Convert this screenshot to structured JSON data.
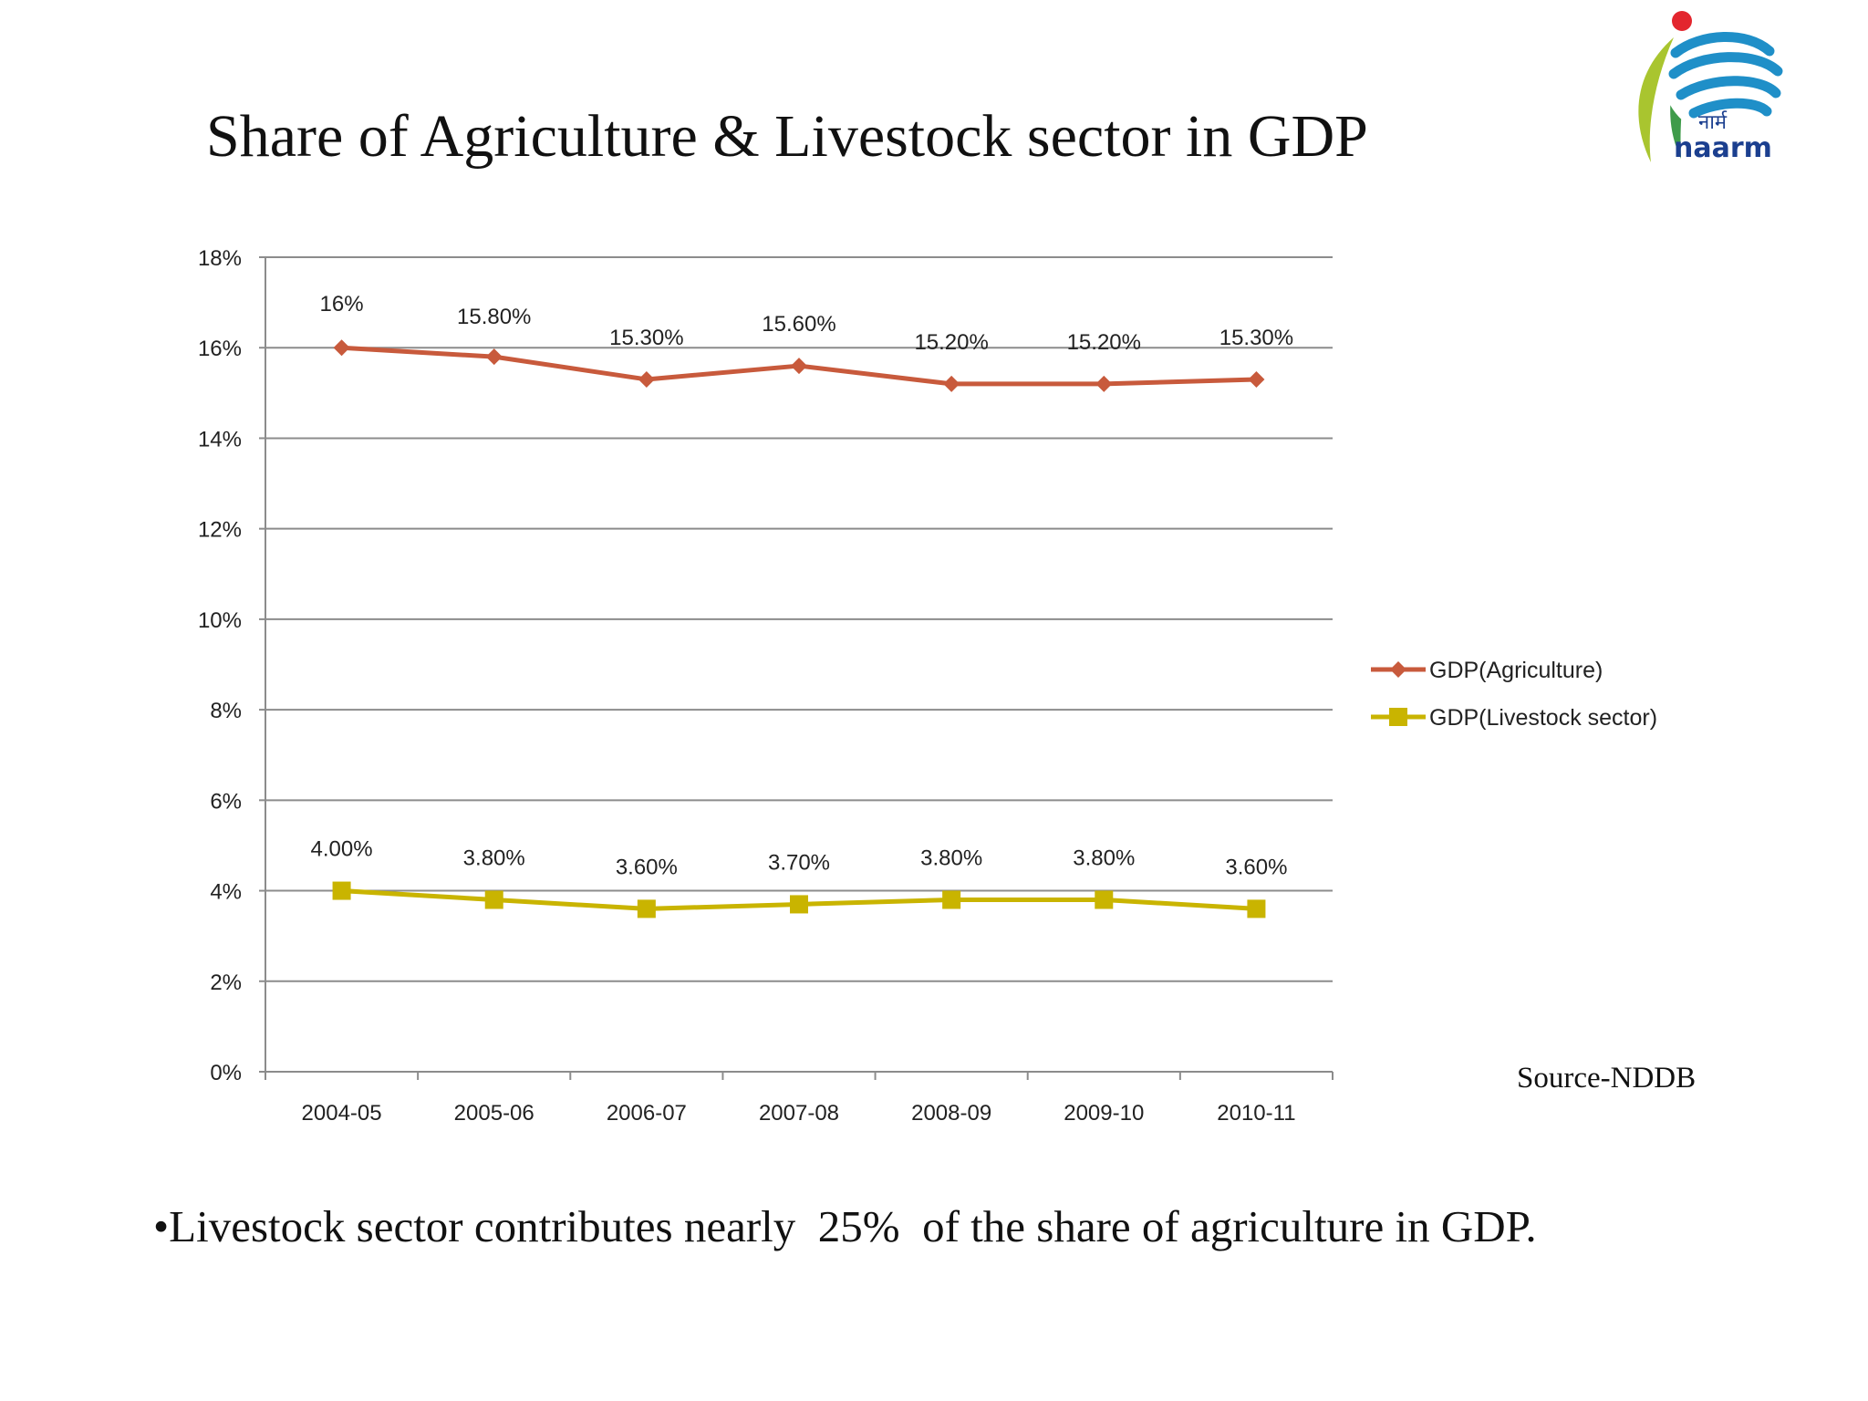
{
  "slide": {
    "title": "Share of Agriculture & Livestock sector in GDP",
    "source": "Source-NDDB",
    "bullet": "•Livestock sector contributes nearly  25%  of the share of agriculture in GDP."
  },
  "logo": {
    "text": "naarm",
    "hindi": "नार्म",
    "icon": "naarm-globe-logo-icon"
  },
  "colors": {
    "agriculture": "#c85a3c",
    "livestock": "#c9b400",
    "grid": "#8c8c8c",
    "axis": "#8c8c8c"
  },
  "chart_data": {
    "type": "line",
    "title": "",
    "xlabel": "",
    "ylabel": "",
    "ylim": [
      0,
      18
    ],
    "yticks": [
      0,
      2,
      4,
      6,
      8,
      10,
      12,
      14,
      16,
      18
    ],
    "ytick_labels": [
      "0%",
      "2%",
      "4%",
      "6%",
      "8%",
      "10%",
      "12%",
      "14%",
      "16%",
      "18%"
    ],
    "categories": [
      "2004-05",
      "2005-06",
      "2006-07",
      "2007-08",
      "2008-09",
      "2009-10",
      "2010-11"
    ],
    "grid": true,
    "legend_position": "right",
    "series": [
      {
        "name": "GDP(Agriculture)",
        "marker": "diamond",
        "values": [
          16.0,
          15.8,
          15.3,
          15.6,
          15.2,
          15.2,
          15.3
        ],
        "labels": [
          "16%",
          "15.80%",
          "15.30%",
          "15.60%",
          "15.20%",
          "15.20%",
          "15.30%"
        ]
      },
      {
        "name": "GDP(Livestock sector)",
        "marker": "square",
        "values": [
          4.0,
          3.8,
          3.6,
          3.7,
          3.8,
          3.8,
          3.6
        ],
        "labels": [
          "4.00%",
          "3.80%",
          "3.60%",
          "3.70%",
          "3.80%",
          "3.80%",
          "3.60%"
        ]
      }
    ]
  }
}
